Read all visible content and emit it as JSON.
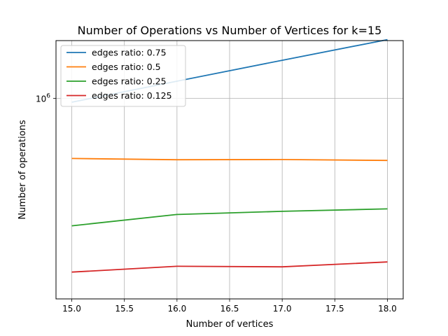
{
  "chart_data": {
    "type": "line",
    "title": "Number of Operations vs Number of Vertices for k=15",
    "xlabel": "Number of vertices",
    "ylabel": "Number of operations",
    "x_ticks": [
      "15.0",
      "15.5",
      "16.0",
      "16.5",
      "17.0",
      "17.5",
      "18.0"
    ],
    "y_ticks": [
      {
        "base": "10",
        "exp": "6",
        "value": 1000000
      }
    ],
    "xlim": [
      14.85,
      18.15
    ],
    "ylim": [
      118000,
      1850000
    ],
    "yscale": "log",
    "grid": true,
    "legend_position": "top-left",
    "x": [
      15,
      16,
      17,
      18
    ],
    "series": [
      {
        "name": "edges ratio: 0.75",
        "color": "#1f77b4",
        "values": [
          960000,
          1200000,
          1500000,
          1870000
        ]
      },
      {
        "name": "edges ratio: 0.5",
        "color": "#ff7f0e",
        "values": [
          527000,
          520000,
          521000,
          516000
        ]
      },
      {
        "name": "edges ratio: 0.25",
        "color": "#2ca02c",
        "values": [
          257000,
          290000,
          300000,
          308000
        ]
      },
      {
        "name": "edges ratio: 0.125",
        "color": "#d62728",
        "values": [
          157000,
          167000,
          166000,
          175000
        ]
      }
    ]
  }
}
